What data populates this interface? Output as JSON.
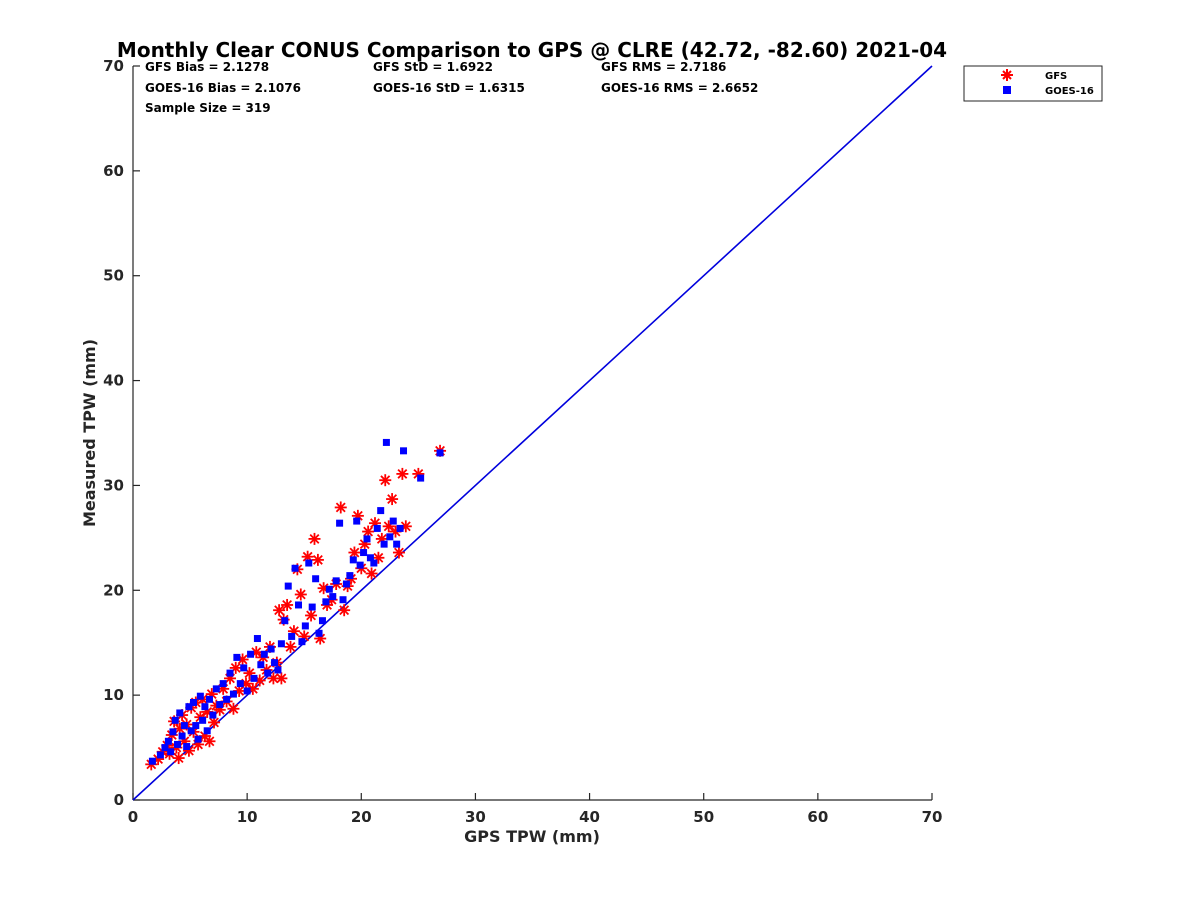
{
  "chart_data": {
    "type": "scatter",
    "title": "Monthly Clear CONUS Comparison to GPS @ CLRE (42.72, -82.60) 2021-04",
    "xlabel": "GPS TPW (mm)",
    "ylabel": "Measured TPW (mm)",
    "xlim": [
      0,
      70
    ],
    "ylim": [
      0,
      70
    ],
    "xticks": [
      "0",
      "10",
      "20",
      "30",
      "40",
      "50",
      "60",
      "70"
    ],
    "yticks": [
      "0",
      "10",
      "20",
      "30",
      "40",
      "50",
      "60",
      "70"
    ],
    "grid": false,
    "legend_position": "top-right",
    "stats": {
      "gfs_bias": "GFS Bias = 2.1278",
      "gfs_std": "GFS StD = 1.6922",
      "gfs_rms": "GFS RMS = 2.7186",
      "goes_bias": "GOES-16 Bias = 2.1076",
      "goes_std": "GOES-16 StD = 1.6315",
      "goes_rms": "GOES-16 RMS = 2.6652",
      "sample_size": "Sample Size = 319"
    },
    "reference_line": {
      "x": [
        0,
        70
      ],
      "y": [
        0,
        70
      ],
      "color": "#0000dd"
    },
    "series": [
      {
        "name": "GFS",
        "marker": "asterisk",
        "color": "#ff0000",
        "points": [
          [
            1.6,
            3.4
          ],
          [
            2.2,
            3.9
          ],
          [
            2.6,
            4.6
          ],
          [
            3.0,
            5.2
          ],
          [
            3.2,
            4.4
          ],
          [
            3.4,
            6.2
          ],
          [
            3.6,
            7.5
          ],
          [
            3.8,
            5.0
          ],
          [
            4.0,
            4.0
          ],
          [
            4.1,
            6.8
          ],
          [
            4.3,
            8.1
          ],
          [
            4.5,
            5.6
          ],
          [
            4.7,
            7.2
          ],
          [
            4.9,
            4.7
          ],
          [
            5.1,
            8.8
          ],
          [
            5.3,
            6.5
          ],
          [
            5.5,
            9.3
          ],
          [
            5.7,
            5.3
          ],
          [
            5.9,
            7.9
          ],
          [
            6.1,
            9.6
          ],
          [
            6.3,
            6.1
          ],
          [
            6.5,
            8.4
          ],
          [
            6.7,
            5.6
          ],
          [
            6.9,
            10.1
          ],
          [
            7.1,
            7.4
          ],
          [
            7.3,
            9.0
          ],
          [
            7.6,
            8.6
          ],
          [
            7.9,
            10.6
          ],
          [
            8.2,
            9.4
          ],
          [
            8.5,
            11.6
          ],
          [
            8.8,
            8.7
          ],
          [
            9.0,
            12.6
          ],
          [
            9.3,
            10.4
          ],
          [
            9.6,
            13.4
          ],
          [
            9.9,
            11.1
          ],
          [
            10.2,
            12.1
          ],
          [
            10.5,
            10.6
          ],
          [
            10.8,
            14.1
          ],
          [
            11.1,
            11.4
          ],
          [
            11.4,
            13.6
          ],
          [
            11.7,
            12.4
          ],
          [
            12.0,
            14.6
          ],
          [
            12.3,
            11.6
          ],
          [
            12.6,
            13.1
          ],
          [
            12.8,
            18.1
          ],
          [
            13.0,
            11.6
          ],
          [
            13.2,
            17.2
          ],
          [
            13.5,
            18.6
          ],
          [
            13.8,
            14.6
          ],
          [
            14.1,
            16.1
          ],
          [
            14.4,
            22.0
          ],
          [
            14.7,
            19.6
          ],
          [
            15.0,
            15.6
          ],
          [
            15.3,
            23.2
          ],
          [
            15.6,
            17.6
          ],
          [
            15.9,
            24.9
          ],
          [
            16.2,
            22.9
          ],
          [
            16.4,
            15.4
          ],
          [
            16.7,
            20.2
          ],
          [
            17.0,
            18.6
          ],
          [
            17.4,
            19.1
          ],
          [
            17.8,
            20.6
          ],
          [
            18.2,
            27.9
          ],
          [
            18.5,
            18.1
          ],
          [
            18.8,
            20.4
          ],
          [
            19.1,
            21.1
          ],
          [
            19.4,
            23.6
          ],
          [
            19.7,
            27.1
          ],
          [
            20.0,
            22.1
          ],
          [
            20.3,
            24.4
          ],
          [
            20.6,
            25.6
          ],
          [
            20.9,
            21.6
          ],
          [
            21.2,
            26.4
          ],
          [
            21.5,
            23.1
          ],
          [
            21.8,
            24.9
          ],
          [
            22.1,
            30.5
          ],
          [
            22.4,
            26.1
          ],
          [
            22.7,
            28.7
          ],
          [
            23.0,
            25.6
          ],
          [
            23.3,
            23.6
          ],
          [
            23.6,
            31.1
          ],
          [
            23.9,
            26.1
          ],
          [
            25.0,
            31.1
          ],
          [
            26.9,
            33.3
          ]
        ]
      },
      {
        "name": "GOES-16",
        "marker": "square",
        "color": "#0000ff",
        "points": [
          [
            1.7,
            3.7
          ],
          [
            2.4,
            4.3
          ],
          [
            2.8,
            5.0
          ],
          [
            3.1,
            5.6
          ],
          [
            3.3,
            4.6
          ],
          [
            3.5,
            6.5
          ],
          [
            3.7,
            7.6
          ],
          [
            3.9,
            5.3
          ],
          [
            4.1,
            8.3
          ],
          [
            4.3,
            6.1
          ],
          [
            4.5,
            7.1
          ],
          [
            4.7,
            5.1
          ],
          [
            4.9,
            8.9
          ],
          [
            5.1,
            6.6
          ],
          [
            5.3,
            9.3
          ],
          [
            5.5,
            7.1
          ],
          [
            5.7,
            5.8
          ],
          [
            5.9,
            9.9
          ],
          [
            6.1,
            7.6
          ],
          [
            6.3,
            8.9
          ],
          [
            6.5,
            6.6
          ],
          [
            6.7,
            9.6
          ],
          [
            7.0,
            8.1
          ],
          [
            7.3,
            10.6
          ],
          [
            7.6,
            9.1
          ],
          [
            7.9,
            11.1
          ],
          [
            8.2,
            9.6
          ],
          [
            8.5,
            12.1
          ],
          [
            8.8,
            10.1
          ],
          [
            9.1,
            13.6
          ],
          [
            9.4,
            11.1
          ],
          [
            9.7,
            12.6
          ],
          [
            10.0,
            10.4
          ],
          [
            10.3,
            13.9
          ],
          [
            10.6,
            11.6
          ],
          [
            10.9,
            15.4
          ],
          [
            11.2,
            12.9
          ],
          [
            11.5,
            13.9
          ],
          [
            11.8,
            12.1
          ],
          [
            12.1,
            14.4
          ],
          [
            12.4,
            13.1
          ],
          [
            12.7,
            12.4
          ],
          [
            13.0,
            14.9
          ],
          [
            13.3,
            17.1
          ],
          [
            13.6,
            20.4
          ],
          [
            13.9,
            15.6
          ],
          [
            14.2,
            22.1
          ],
          [
            14.5,
            18.6
          ],
          [
            14.8,
            15.1
          ],
          [
            15.1,
            16.6
          ],
          [
            15.4,
            22.6
          ],
          [
            15.7,
            18.4
          ],
          [
            16.0,
            21.1
          ],
          [
            16.3,
            15.9
          ],
          [
            16.6,
            17.1
          ],
          [
            16.9,
            18.9
          ],
          [
            17.2,
            20.1
          ],
          [
            17.5,
            19.4
          ],
          [
            17.8,
            20.9
          ],
          [
            18.1,
            26.4
          ],
          [
            18.4,
            19.1
          ],
          [
            18.7,
            20.6
          ],
          [
            19.0,
            21.4
          ],
          [
            19.3,
            22.9
          ],
          [
            19.6,
            26.6
          ],
          [
            19.9,
            22.4
          ],
          [
            20.2,
            23.6
          ],
          [
            20.5,
            24.9
          ],
          [
            20.8,
            23.1
          ],
          [
            21.1,
            22.6
          ],
          [
            21.4,
            25.9
          ],
          [
            21.7,
            27.6
          ],
          [
            22.0,
            24.4
          ],
          [
            22.2,
            34.1
          ],
          [
            22.5,
            25.1
          ],
          [
            22.8,
            26.6
          ],
          [
            23.1,
            24.4
          ],
          [
            23.4,
            25.9
          ],
          [
            23.7,
            33.3
          ],
          [
            25.2,
            30.7
          ],
          [
            26.9,
            33.1
          ]
        ]
      }
    ]
  }
}
